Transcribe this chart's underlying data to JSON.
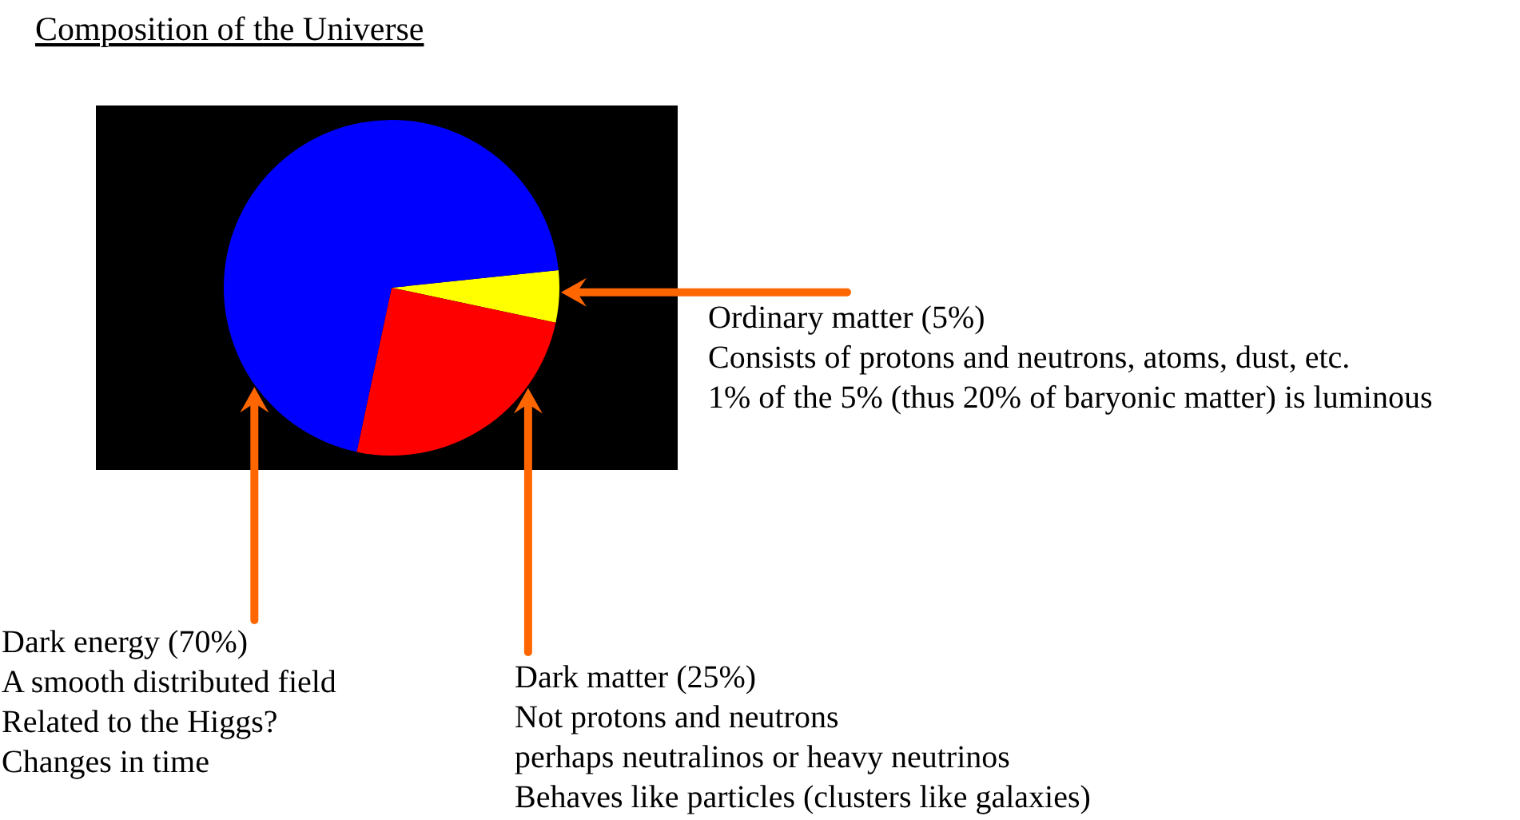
{
  "chart_data": {
    "type": "pie",
    "title": "Composition of the Universe",
    "categories": [
      "Ordinary matter",
      "Dark matter",
      "Dark energy"
    ],
    "values": [
      5,
      25,
      70
    ],
    "colors": [
      "#ffff00",
      "#ff0000",
      "#0000ff"
    ],
    "value_labels": [
      "(5%)",
      "(25%)",
      "(70%)"
    ],
    "annotations": [
      "Consists of protons and neutrons, atoms, dust, etc.\n1% of the 5% (thus 20% of baryonic matter) is luminous",
      "Not protons and neutrons\nperhaps neutralinos or heavy neutrinos\nBehaves like particles (clusters like galaxies)",
      "A smooth distributed field\nRelated to the Higgs?\nChanges in time"
    ]
  }
}
